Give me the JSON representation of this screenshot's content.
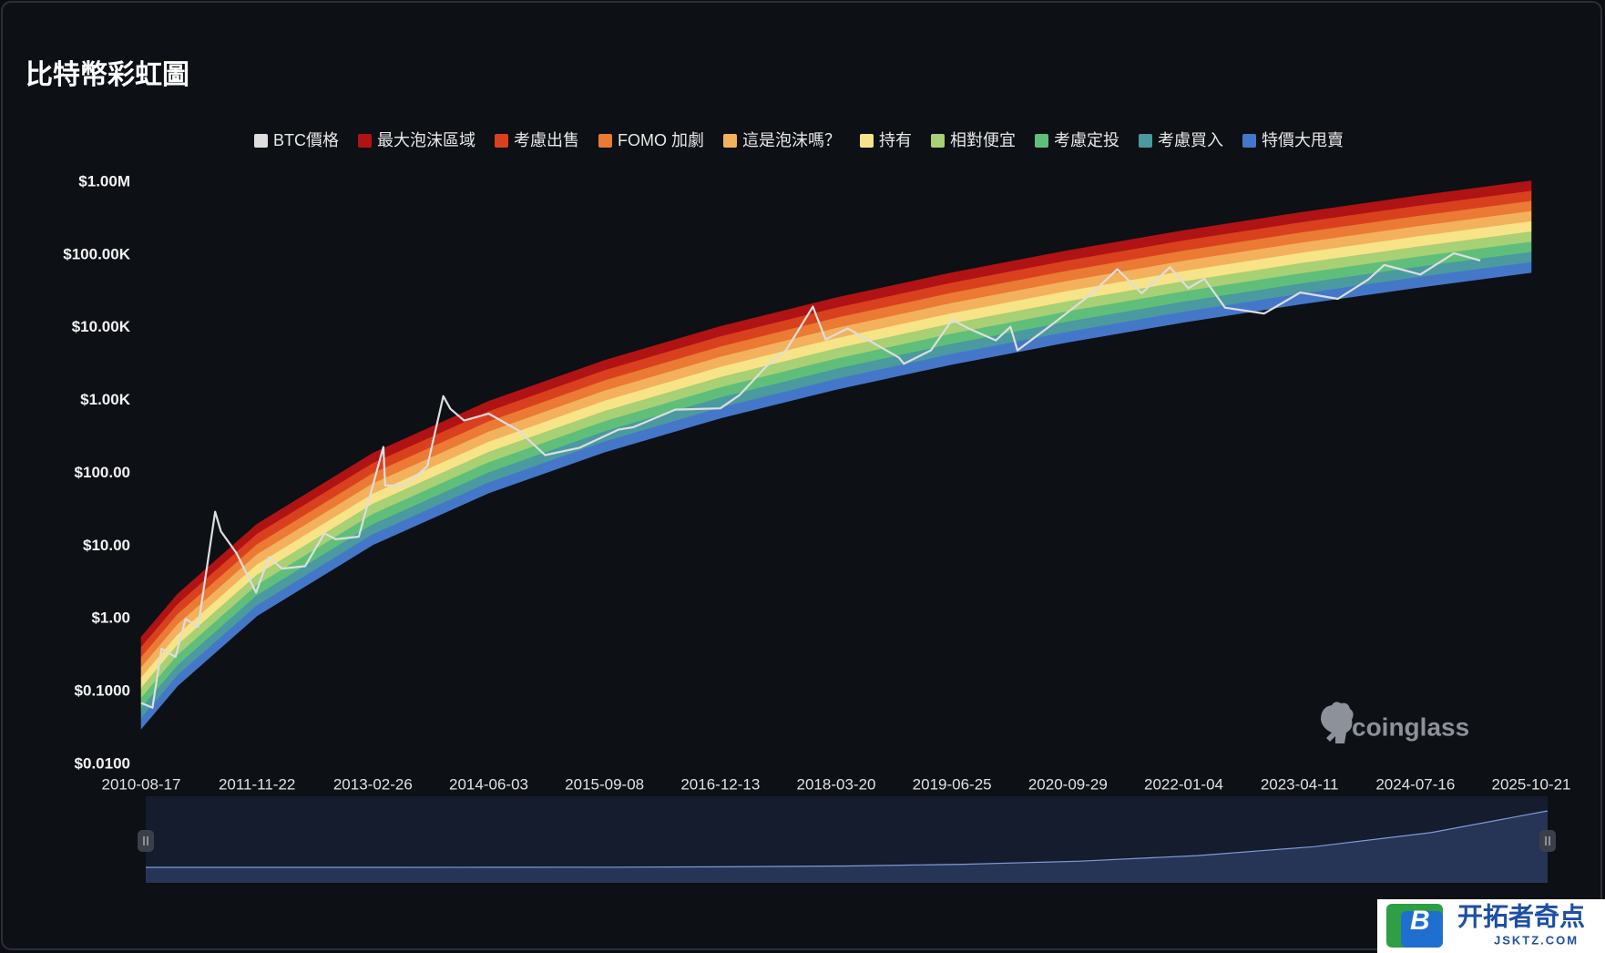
{
  "chart_data": {
    "type": "rainbow",
    "title": "比特幣彩虹圖",
    "log_scale": true,
    "grid": false,
    "legend_position": "top",
    "xlim": [
      "2010-08-17",
      "2025-10-21"
    ],
    "xticks": [
      "2010-08-17",
      "2011-11-22",
      "2013-02-26",
      "2014-06-03",
      "2015-09-08",
      "2016-12-13",
      "2018-03-20",
      "2019-06-25",
      "2020-09-29",
      "2022-01-04",
      "2023-04-11",
      "2024-07-16",
      "2025-10-21"
    ],
    "ylim": [
      0.01,
      1000000
    ],
    "yticks": [
      {
        "value": 0.01,
        "label": "$0.0100"
      },
      {
        "value": 0.1,
        "label": "$0.1000"
      },
      {
        "value": 1,
        "label": "$1.00"
      },
      {
        "value": 10,
        "label": "$10.00"
      },
      {
        "value": 100,
        "label": "$100.00"
      },
      {
        "value": 1000,
        "label": "$1.00K"
      },
      {
        "value": 10000,
        "label": "$10.00K"
      },
      {
        "value": 100000,
        "label": "$100.00K"
      },
      {
        "value": 1000000,
        "label": "$1.00M"
      }
    ],
    "x": [
      "2010-08-17",
      "2011-01-09",
      "2011-11-22",
      "2013-02-26",
      "2014-06-03",
      "2015-09-08",
      "2016-12-13",
      "2018-03-20",
      "2019-06-25",
      "2020-09-29",
      "2022-01-04",
      "2023-04-11",
      "2024-07-16",
      "2025-10-21"
    ],
    "series": [
      {
        "name": "BTC價格",
        "color": "#dedede",
        "x": [
          "2010-08-17",
          "2010-10-01",
          "2010-11-06",
          "2011-01-01",
          "2011-02-10",
          "2011-04-01",
          "2011-06-08",
          "2011-07-01",
          "2011-09-01",
          "2011-11-18",
          "2012-01-08",
          "2012-03-01",
          "2012-06-01",
          "2012-08-17",
          "2012-10-01",
          "2013-01-01",
          "2013-04-09",
          "2013-04-16",
          "2013-07-05",
          "2013-10-01",
          "2013-12-04",
          "2014-01-01",
          "2014-02-25",
          "2014-06-03",
          "2014-10-01",
          "2015-01-14",
          "2015-06-01",
          "2015-11-04",
          "2016-01-01",
          "2016-06-16",
          "2016-12-13",
          "2017-03-01",
          "2017-06-12",
          "2017-09-01",
          "2017-12-17",
          "2018-02-06",
          "2018-05-05",
          "2018-11-25",
          "2018-12-15",
          "2019-04-02",
          "2019-06-26",
          "2019-09-01",
          "2019-12-17",
          "2020-02-13",
          "2020-03-12",
          "2020-07-27",
          "2020-12-31",
          "2021-04-14",
          "2021-07-20",
          "2021-11-10",
          "2022-01-22",
          "2022-03-28",
          "2022-06-18",
          "2022-11-21",
          "2023-04-14",
          "2023-09-11",
          "2024-01-10",
          "2024-03-14",
          "2024-08-05",
          "2024-12-17",
          "2025-04-01"
        ],
        "values": [
          0.07,
          0.06,
          0.39,
          0.3,
          1.0,
          0.78,
          29.6,
          16,
          8,
          2.3,
          7,
          4.9,
          5.3,
          15,
          12.4,
          13.5,
          230,
          68,
          68,
          125,
          1150,
          770,
          530,
          660,
          385,
          178,
          225,
          400,
          430,
          750,
          780,
          1200,
          2900,
          4900,
          19500,
          6900,
          9800,
          3900,
          3200,
          4900,
          12900,
          9700,
          6700,
          10300,
          4900,
          11000,
          29000,
          64000,
          29800,
          68000,
          35000,
          47000,
          18900,
          15700,
          30500,
          25000,
          46000,
          73000,
          54000,
          106000,
          84000
        ]
      },
      {
        "name": "最大泡沫區域",
        "color": "#b01313",
        "high": [
          0.562,
          2.19,
          20.1,
          189,
          977,
          3573,
          10425,
          25880,
          57170,
          115100,
          216800,
          382000,
          642800,
          1044900
        ],
        "low": [
          0.407,
          1.58,
          14.6,
          137,
          708,
          2587,
          7550,
          18742,
          41400,
          83350,
          157000,
          276700,
          465500,
          756700
        ]
      },
      {
        "name": "考慮出售",
        "color": "#d9411e",
        "high": [
          0.407,
          1.58,
          14.6,
          137,
          708,
          2587,
          7550,
          18742,
          41400,
          83350,
          157000,
          276700,
          465500,
          756700
        ],
        "low": [
          0.295,
          1.15,
          10.5,
          99.3,
          513,
          1875,
          5470,
          13580,
          30000,
          60390,
          113700,
          200500,
          337300,
          548300
        ]
      },
      {
        "name": "FOMO 加劇",
        "color": "#ea7a34",
        "high": [
          0.295,
          1.15,
          10.5,
          99.3,
          513,
          1875,
          5470,
          13580,
          30000,
          60390,
          113700,
          200500,
          337300,
          548300
        ],
        "low": [
          0.214,
          0.832,
          7.64,
          71.9,
          371,
          1358,
          3963,
          9837,
          21730,
          43750,
          82390,
          145200,
          244300,
          397200
        ]
      },
      {
        "name": "這是泡沫嗎？",
        "color": "#f3b15d",
        "high": [
          0.214,
          0.832,
          7.64,
          71.9,
          371,
          1358,
          3963,
          9837,
          21730,
          43750,
          82390,
          145200,
          244300,
          397200
        ],
        "low": [
          0.155,
          0.603,
          5.53,
          52.1,
          269,
          984,
          2871,
          7127,
          15743,
          31696,
          59690,
          105200,
          177000,
          287700
        ]
      },
      {
        "name": "持有",
        "color": "#f7e488",
        "high": [
          0.155,
          0.603,
          5.53,
          52.1,
          269,
          984,
          2871,
          7127,
          15743,
          31696,
          59690,
          105200,
          177000,
          287700
        ],
        "low": [
          0.112,
          0.436,
          4.01,
          37.8,
          195,
          713,
          2080,
          5163,
          11405,
          22962,
          43250,
          76210,
          128200,
          208500
        ]
      },
      {
        "name": "相對便宜",
        "color": "#a8d074",
        "high": [
          0.112,
          0.436,
          4.01,
          37.8,
          195,
          713,
          2080,
          5163,
          11405,
          22962,
          43250,
          76210,
          128200,
          208500
        ],
        "low": [
          0.0813,
          0.316,
          2.9,
          27.4,
          141,
          516,
          1506,
          3740,
          8261,
          16632,
          31320,
          55200,
          92890,
          151000
        ]
      },
      {
        "name": "考慮定投",
        "color": "#5fbf7a",
        "high": [
          0.0813,
          0.316,
          2.9,
          27.4,
          141,
          516,
          1506,
          3740,
          8261,
          16632,
          31320,
          55200,
          92890,
          151000
        ],
        "low": [
          0.0589,
          0.229,
          2.1,
          19.8,
          102,
          374,
          1091,
          2709,
          5984,
          12047,
          22690,
          39990,
          67280,
          109400
        ]
      },
      {
        "name": "考慮買入",
        "color": "#4a9aa0",
        "high": [
          0.0589,
          0.229,
          2.1,
          19.8,
          102,
          374,
          1091,
          2709,
          5984,
          12047,
          22690,
          39990,
          67280,
          109400
        ],
        "low": [
          0.0427,
          0.166,
          1.52,
          14.4,
          74.1,
          271,
          790,
          1962,
          4335,
          8727,
          16440,
          28970,
          48740,
          79230
        ]
      },
      {
        "name": "特價大甩賣",
        "color": "#4577c8",
        "high": [
          0.0427,
          0.166,
          1.52,
          14.4,
          74.1,
          271,
          790,
          1962,
          4335,
          8727,
          16440,
          28970,
          48740,
          79230
        ],
        "low": [
          0.0309,
          0.12,
          1.1,
          10.4,
          53.7,
          196,
          573,
          1422,
          3141,
          6324,
          11910,
          20990,
          35320,
          57410
        ]
      }
    ],
    "watermark": "coinglass"
  },
  "badge": {
    "icon": "B",
    "title": "开拓者奇点",
    "subtitle": "JSKTZ.COM"
  }
}
